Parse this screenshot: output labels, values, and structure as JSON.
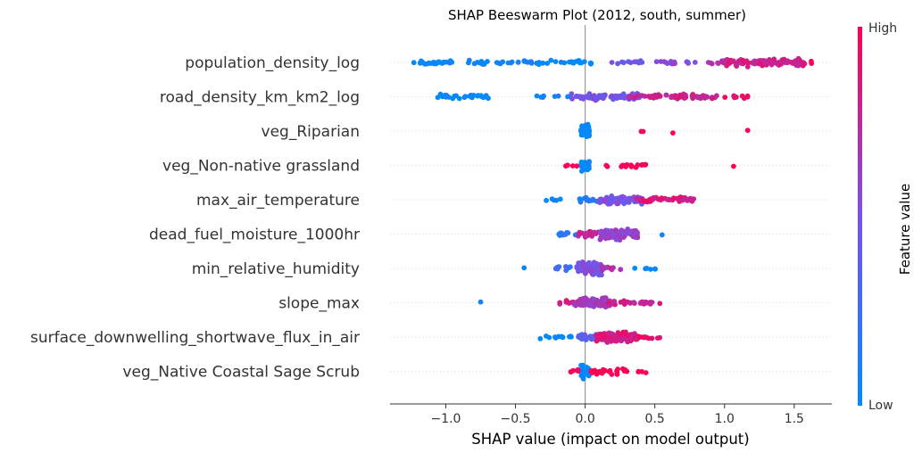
{
  "chart_data": {
    "type": "scatter",
    "subtype": "beeswarm",
    "title": "SHAP Beeswarm Plot (2012, south, summer)",
    "xlabel": "SHAP value (impact on model output)",
    "xlim": [
      -1.4,
      1.77
    ],
    "xticks": [
      -1.0,
      -0.5,
      0.0,
      0.5,
      1.0,
      1.5
    ],
    "xtick_labels": [
      "−1.0",
      "−0.5",
      "0.0",
      "0.5",
      "1.0",
      "1.5"
    ],
    "colorbar": {
      "label": "Feature value",
      "high_label": "High",
      "low_label": "Low",
      "low_color": "#008bfb",
      "mid_color": "#7b52e8",
      "high_color": "#ff0052"
    },
    "features": [
      {
        "name": "population_density_log",
        "clusters": [
          {
            "from": -1.27,
            "to": -0.9,
            "count": 26,
            "value": 0.02
          },
          {
            "from": -0.88,
            "to": -0.38,
            "count": 26,
            "value": 0.05
          },
          {
            "from": -0.35,
            "to": 0.05,
            "count": 22,
            "value": 0.03
          },
          {
            "from": 0.18,
            "to": 0.45,
            "count": 12,
            "value": 0.45
          },
          {
            "from": 0.5,
            "to": 0.8,
            "count": 14,
            "value": 0.55
          },
          {
            "from": 0.88,
            "to": 1.05,
            "count": 12,
            "value": 0.7
          },
          {
            "from": 1.0,
            "to": 1.58,
            "count": 110,
            "value": 0.82
          },
          {
            "from": 1.6,
            "to": 1.65,
            "count": 2,
            "value": 0.98
          }
        ]
      },
      {
        "name": "road_density_km_km2_log",
        "clusters": [
          {
            "from": -1.06,
            "to": -0.68,
            "count": 28,
            "value": 0.03
          },
          {
            "from": -0.35,
            "to": -0.1,
            "count": 8,
            "value": 0.08
          },
          {
            "from": -0.1,
            "to": 0.4,
            "count": 72,
            "value": 0.48
          },
          {
            "from": 0.3,
            "to": 0.95,
            "count": 58,
            "value": 0.8
          },
          {
            "from": 1.0,
            "to": 1.2,
            "count": 10,
            "value": 0.92
          }
        ]
      },
      {
        "name": "veg_Riparian",
        "clusters": [
          {
            "from": -0.03,
            "to": 0.03,
            "count": 34,
            "value": 0.0
          },
          {
            "from": 0.38,
            "to": 0.44,
            "count": 2,
            "value": 1.0
          },
          {
            "from": 0.62,
            "to": 0.64,
            "count": 1,
            "value": 1.0
          },
          {
            "from": 1.16,
            "to": 1.17,
            "count": 1,
            "value": 1.0
          }
        ]
      },
      {
        "name": "veg_Non-native grassland",
        "clusters": [
          {
            "from": -0.03,
            "to": 0.03,
            "count": 30,
            "value": 0.0
          },
          {
            "from": -0.14,
            "to": -0.04,
            "count": 4,
            "value": 1.0
          },
          {
            "from": 0.08,
            "to": 0.44,
            "count": 18,
            "value": 1.0
          },
          {
            "from": 1.06,
            "to": 1.07,
            "count": 1,
            "value": 1.0
          }
        ]
      },
      {
        "name": "max_air_temperature",
        "clusters": [
          {
            "from": -0.3,
            "to": -0.14,
            "count": 5,
            "value": 0.02
          },
          {
            "from": -0.05,
            "to": 0.12,
            "count": 16,
            "value": 0.15
          },
          {
            "from": 0.1,
            "to": 0.42,
            "count": 75,
            "value": 0.5
          },
          {
            "from": 0.35,
            "to": 0.78,
            "count": 48,
            "value": 0.85
          }
        ]
      },
      {
        "name": "dead_fuel_moisture_1000hr",
        "clusters": [
          {
            "from": -0.22,
            "to": -0.02,
            "count": 12,
            "value": 0.15
          },
          {
            "from": -0.05,
            "to": 0.16,
            "count": 30,
            "value": 0.75
          },
          {
            "from": 0.1,
            "to": 0.38,
            "count": 85,
            "value": 0.6
          },
          {
            "from": 0.55,
            "to": 0.58,
            "count": 1,
            "value": 0.05
          }
        ]
      },
      {
        "name": "min_relative_humidity",
        "clusters": [
          {
            "from": -0.44,
            "to": -0.43,
            "count": 1,
            "value": 0.0
          },
          {
            "from": -0.22,
            "to": -0.05,
            "count": 12,
            "value": 0.25
          },
          {
            "from": -0.06,
            "to": 0.12,
            "count": 75,
            "value": 0.5
          },
          {
            "from": 0.12,
            "to": 0.28,
            "count": 12,
            "value": 0.7
          },
          {
            "from": 0.35,
            "to": 0.56,
            "count": 6,
            "value": 0.1
          }
        ]
      },
      {
        "name": "slope_max",
        "clusters": [
          {
            "from": -0.75,
            "to": -0.74,
            "count": 1,
            "value": 0.0
          },
          {
            "from": -0.22,
            "to": -0.08,
            "count": 8,
            "value": 0.85
          },
          {
            "from": -0.08,
            "to": 0.18,
            "count": 85,
            "value": 0.65
          },
          {
            "from": 0.15,
            "to": 0.48,
            "count": 30,
            "value": 0.8
          },
          {
            "from": 0.53,
            "to": 0.54,
            "count": 1,
            "value": 0.9
          }
        ]
      },
      {
        "name": "surface_downwelling_shortwave_flux_in_air",
        "clusters": [
          {
            "from": -0.33,
            "to": -0.1,
            "count": 12,
            "value": 0.02
          },
          {
            "from": -0.05,
            "to": 0.12,
            "count": 35,
            "value": 0.35
          },
          {
            "from": 0.08,
            "to": 0.38,
            "count": 95,
            "value": 0.85
          },
          {
            "from": 0.38,
            "to": 0.55,
            "count": 12,
            "value": 0.9
          }
        ]
      },
      {
        "name": "veg_Native Coastal Sage Scrub",
        "clusters": [
          {
            "from": -0.03,
            "to": 0.03,
            "count": 48,
            "value": 0.0
          },
          {
            "from": -0.12,
            "to": -0.04,
            "count": 6,
            "value": 1.0
          },
          {
            "from": 0.04,
            "to": 0.3,
            "count": 30,
            "value": 1.0
          },
          {
            "from": 0.38,
            "to": 0.44,
            "count": 4,
            "value": 1.0
          }
        ]
      }
    ]
  }
}
